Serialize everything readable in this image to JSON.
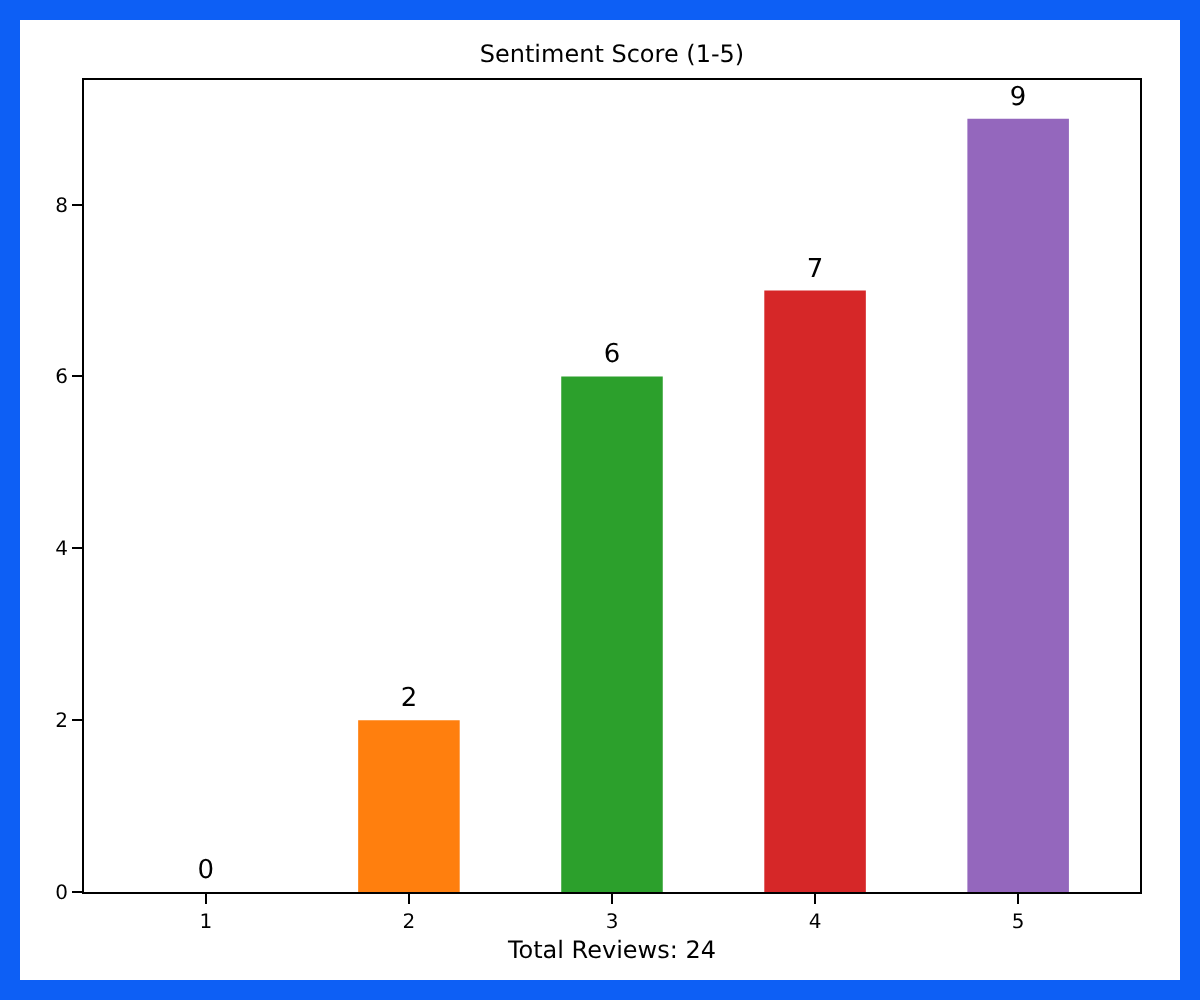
{
  "chart_data": {
    "type": "bar",
    "title": "Sentiment Score (1-5)",
    "xlabel": "Total Reviews: 24",
    "categories": [
      "1",
      "2",
      "3",
      "4",
      "5"
    ],
    "values": [
      0,
      2,
      6,
      7,
      9
    ],
    "colors": [
      "#1f77b4",
      "#ff7f0e",
      "#2ca02c",
      "#d62728",
      "#9467bd"
    ],
    "ylim": [
      0,
      9.45
    ],
    "yticks": [
      0,
      2,
      4,
      6,
      8
    ],
    "data_labels": true
  }
}
